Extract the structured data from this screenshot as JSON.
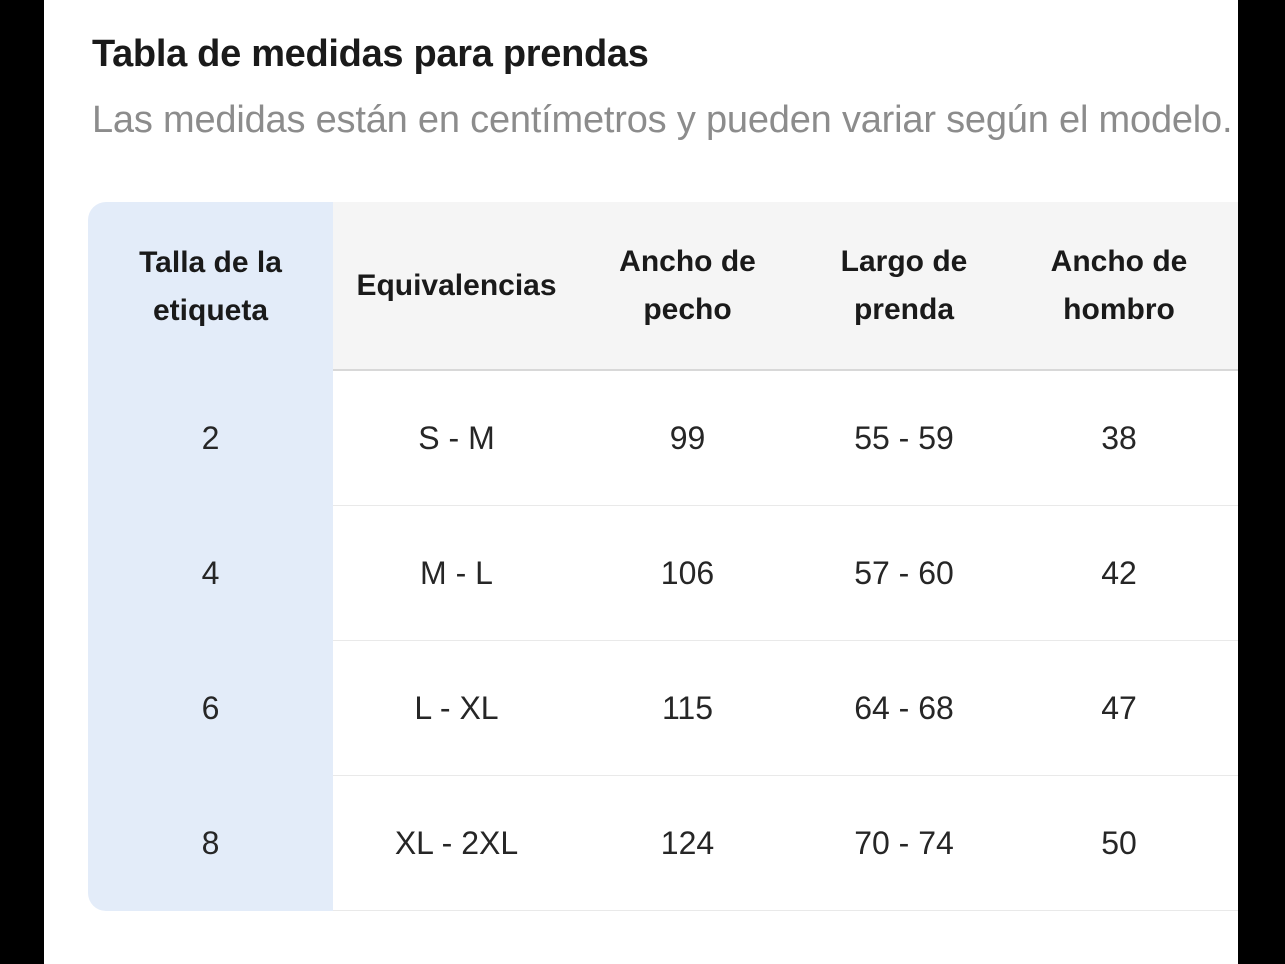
{
  "header": {
    "title": "Tabla de medidas para prendas",
    "subtitle": "Las medidas están en centímetros y pueden variar según el modelo."
  },
  "size_table": {
    "columns": [
      "Talla de la etiqueta",
      "Equivalencias",
      "Ancho de pecho",
      "Largo de prenda",
      "Ancho de hombro"
    ],
    "rows": [
      [
        "2",
        "S - M",
        "99",
        "55 - 59",
        "38"
      ],
      [
        "4",
        "M - L",
        "106",
        "57 - 60",
        "42"
      ],
      [
        "6",
        "L - XL",
        "115",
        "64 - 68",
        "47"
      ],
      [
        "8",
        "XL - 2XL",
        "124",
        "70 - 74",
        "50"
      ]
    ],
    "units_note": "cm"
  },
  "colors": {
    "accent_column_bg": "#e3ecf9",
    "header_row_bg": "#f5f5f5",
    "edge_bar": "#000000",
    "title_text": "#1a1a1a",
    "subtitle_text": "#8c8c8c"
  }
}
